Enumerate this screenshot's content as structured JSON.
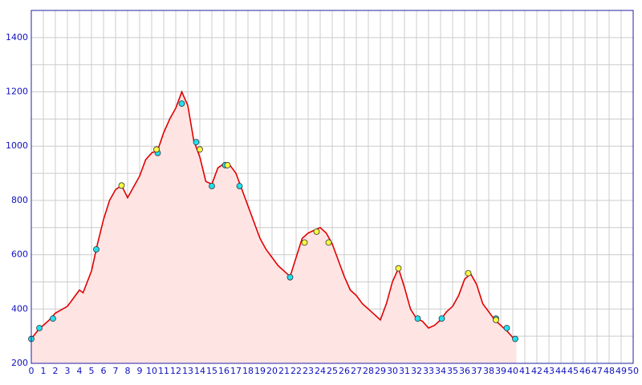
{
  "chart_data": {
    "type": "area",
    "xlim": [
      0,
      50
    ],
    "ylim": [
      200,
      1500
    ],
    "xticks": [
      0,
      1,
      2,
      3,
      4,
      5,
      6,
      7,
      8,
      9,
      10,
      11,
      12,
      13,
      14,
      15,
      16,
      17,
      18,
      19,
      20,
      21,
      22,
      23,
      24,
      25,
      26,
      27,
      28,
      29,
      30,
      31,
      32,
      33,
      34,
      35,
      36,
      37,
      38,
      39,
      40,
      41,
      42,
      43,
      44,
      45,
      46,
      47,
      48,
      49,
      50
    ],
    "yticks": [
      200,
      400,
      600,
      800,
      1000,
      1200,
      1400
    ],
    "minor_yticks": [
      300,
      500,
      700,
      900,
      1100,
      1300,
      1500
    ],
    "grid": true,
    "series": [
      {
        "color": "#e00000",
        "fill": "#ffe4e4",
        "x": [
          0,
          0.7,
          1,
          1.5,
          2,
          3,
          3.5,
          4,
          4.3,
          5,
          5.5,
          6,
          6.5,
          7,
          7.5,
          8,
          8.5,
          9,
          9.5,
          10,
          10.5,
          11,
          11.5,
          12,
          12.5,
          13,
          13.5,
          14,
          14.5,
          15,
          15.5,
          16,
          16.5,
          17,
          17.5,
          18,
          18.5,
          19,
          19.5,
          20,
          20.5,
          21,
          21.5,
          22,
          22.5,
          23,
          23.5,
          24,
          24.5,
          25,
          25.5,
          26,
          26.5,
          27,
          27.5,
          28,
          28.5,
          29,
          29.5,
          30,
          30.5,
          31,
          31.5,
          32,
          32.5,
          33,
          33.5,
          34,
          34.5,
          35,
          35.5,
          36,
          36.5,
          37,
          37.5,
          38,
          38.5,
          39,
          39.5,
          40,
          40.3
        ],
        "values": [
          290,
          330,
          340,
          360,
          385,
          410,
          440,
          470,
          460,
          540,
          640,
          730,
          800,
          840,
          855,
          810,
          850,
          890,
          950,
          975,
          985,
          1050,
          1100,
          1140,
          1200,
          1150,
          1020,
          960,
          870,
          860,
          920,
          935,
          930,
          900,
          840,
          780,
          720,
          660,
          620,
          590,
          560,
          540,
          520,
          590,
          660,
          680,
          690,
          700,
          680,
          640,
          580,
          520,
          470,
          450,
          420,
          400,
          380,
          360,
          420,
          500,
          550,
          480,
          400,
          365,
          355,
          330,
          340,
          360,
          390,
          410,
          450,
          510,
          530,
          490,
          420,
          390,
          360,
          340,
          320,
          295,
          290
        ]
      },
      {
        "color": "#20e0f0",
        "marker": "circle",
        "x": [
          0,
          0.67,
          1.8,
          5.4,
          10.5,
          12.5,
          13.7,
          15,
          16.1,
          17.3,
          21.5,
          32.1,
          34.1,
          38.6,
          39.5,
          40.2
        ],
        "values": [
          290,
          330,
          365,
          620,
          975,
          1157,
          1015,
          853,
          930,
          853,
          517,
          365,
          365,
          365,
          330,
          290
        ]
      },
      {
        "color": "#ffff40",
        "marker": "circle",
        "x": [
          7.5,
          10.4,
          14,
          16.3,
          22.7,
          23.7,
          24.7,
          30.5,
          36.3,
          38.6
        ],
        "values": [
          855,
          988,
          988,
          930,
          645,
          685,
          645,
          550,
          532,
          360
        ]
      }
    ]
  }
}
